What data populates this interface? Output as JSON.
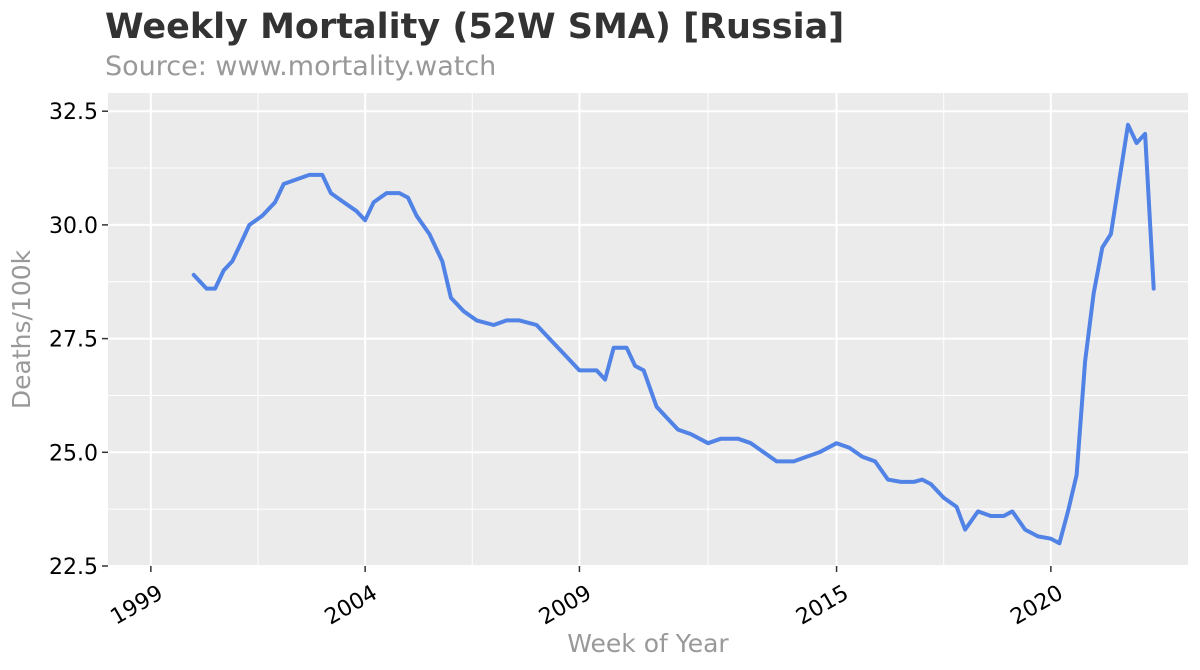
{
  "chart_data": {
    "type": "line",
    "title": "Weekly Mortality (52W SMA) [Russia]",
    "subtitle": "Source: www.mortality.watch",
    "xlabel": "Week of Year",
    "ylabel": "Deaths/100k",
    "xlim": [
      1998.0,
      2023.2
    ],
    "ylim": [
      22.5,
      32.9
    ],
    "x_ticks": [
      1999,
      2004,
      2009,
      2015,
      2020
    ],
    "x_tick_labels": [
      "1999",
      "2004",
      "2009",
      "2015",
      "2020"
    ],
    "y_ticks": [
      22.5,
      25.0,
      27.5,
      30.0,
      32.5
    ],
    "y_tick_labels": [
      "22.5",
      "25.0",
      "27.5",
      "30.0",
      "32.5"
    ],
    "grid": true,
    "series": [
      {
        "color": "#5182e6",
        "x": [
          2000.0,
          2000.1,
          2000.3,
          2000.5,
          2000.7,
          2000.9,
          2001.1,
          2001.3,
          2001.6,
          2001.9,
          2002.1,
          2002.4,
          2002.7,
          2003.0,
          2003.2,
          2003.5,
          2003.8,
          2004.0,
          2004.2,
          2004.5,
          2004.8,
          2005.0,
          2005.2,
          2005.5,
          2005.8,
          2006.0,
          2006.3,
          2006.6,
          2007.0,
          2007.3,
          2007.6,
          2008.0,
          2008.3,
          2008.7,
          2009.0,
          2009.2,
          2009.4,
          2009.6,
          2009.8,
          2010.1,
          2010.3,
          2010.5,
          2010.8,
          2011.0,
          2011.3,
          2011.6,
          2012.0,
          2012.3,
          2012.7,
          2013.0,
          2013.3,
          2013.6,
          2014.0,
          2014.3,
          2014.6,
          2015.0,
          2015.3,
          2015.6,
          2015.9,
          2016.2,
          2016.5,
          2016.8,
          2017.0,
          2017.2,
          2017.5,
          2017.8,
          2018.0,
          2018.3,
          2018.6,
          2018.9,
          2019.1,
          2019.4,
          2019.7,
          2020.0,
          2020.2,
          2020.4,
          2020.6,
          2020.8,
          2021.0,
          2021.2,
          2021.4,
          2021.6,
          2021.8,
          2022.0,
          2022.2,
          2022.4
        ],
        "values": [
          28.9,
          28.8,
          28.6,
          28.6,
          29.0,
          29.2,
          29.6,
          30.0,
          30.2,
          30.5,
          30.9,
          31.0,
          31.1,
          31.1,
          30.7,
          30.5,
          30.3,
          30.1,
          30.5,
          30.7,
          30.7,
          30.6,
          30.2,
          29.8,
          29.2,
          28.4,
          28.1,
          27.9,
          27.8,
          27.9,
          27.9,
          27.8,
          27.5,
          27.1,
          26.8,
          26.8,
          26.8,
          26.6,
          27.3,
          27.3,
          26.9,
          26.8,
          26.0,
          25.8,
          25.5,
          25.4,
          25.2,
          25.3,
          25.3,
          25.2,
          25.0,
          24.8,
          24.8,
          24.9,
          25.0,
          25.2,
          25.1,
          24.9,
          24.8,
          24.4,
          24.35,
          24.35,
          24.4,
          24.3,
          24.0,
          23.8,
          23.3,
          23.7,
          23.6,
          23.6,
          23.7,
          23.3,
          23.15,
          23.1,
          23.0,
          23.7,
          24.5,
          27.0,
          28.5,
          29.5,
          29.8,
          31.0,
          32.2,
          31.8,
          32.0,
          28.6
        ]
      }
    ]
  }
}
